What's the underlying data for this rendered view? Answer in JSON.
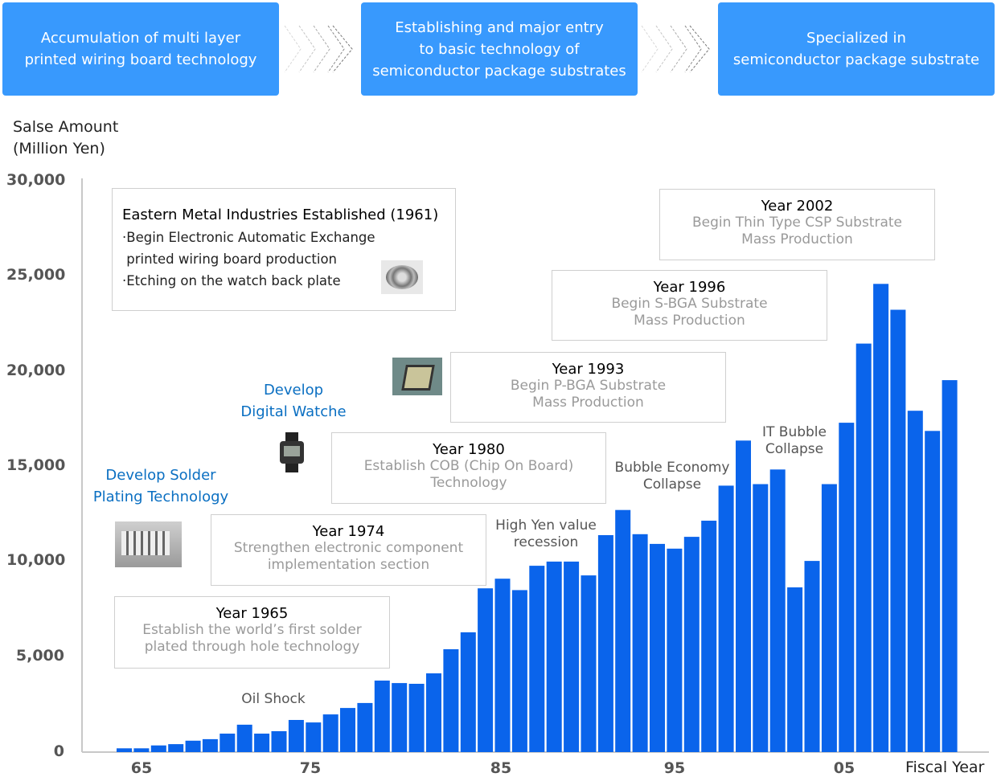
{
  "banners": [
    "Accumulation of multi layer\nprinted  wiring board technology",
    "Establishing and major entry\nto basic technology of\nsemiconductor package substrates",
    "Specialized in\nsemiconductor package substrate"
  ],
  "colors": {
    "banner": "#3899fd",
    "bar": "#0a64eb",
    "milestone_text": "#0a6fc2"
  },
  "milestones": {
    "founding": {
      "title": "Eastern Metal Industries Established (1961)",
      "lines": [
        "·Begin Electronic Automatic Exchange",
        " printed wiring board production",
        "·Etching on the watch back plate"
      ]
    },
    "y2002": {
      "title": "Year 2002",
      "desc": "Begin Thin Type CSP Substrate\nMass Production"
    },
    "y1996": {
      "title": "Year 1996",
      "desc": "Begin S-BGA Substrate\nMass Production"
    },
    "y1993": {
      "title": "Year 1993",
      "desc": "Begin P-BGA Substrate\nMass Production"
    },
    "y1980": {
      "title": "Year 1980",
      "desc": "Establish COB (Chip On Board)\nTechnology"
    },
    "y1974": {
      "title": "Year 1974",
      "desc": "Strengthen electronic component\nimplementation section"
    },
    "y1965": {
      "title": "Year 1965",
      "desc": "Establish the world’s first solder\nplated through hole technology"
    },
    "digital_watch": "Develop\nDigital Watche",
    "solder": "Develop Solder\nPlating Technology"
  },
  "chart_data": {
    "type": "bar",
    "ylabel": "Salse Amount\n(Million Yen)",
    "xlabel": "Fiscal Year",
    "ylim": [
      0,
      30000
    ],
    "yticks": [
      "30,000",
      "25,000",
      "20,000",
      "15,000",
      "10,000",
      "5,000",
      "0"
    ],
    "xticks": [
      "65",
      "75",
      "85",
      "95",
      "05"
    ],
    "grid": false,
    "categories": [
      1964,
      1965,
      1966,
      1967,
      1968,
      1969,
      1970,
      1971,
      1972,
      1973,
      1974,
      1975,
      1976,
      1977,
      1978,
      1979,
      1980,
      1981,
      1982,
      1983,
      1984,
      1985,
      1986,
      1987,
      1988,
      1989,
      1990,
      1991,
      1992,
      1993,
      1994,
      1995,
      1996,
      1997,
      1998,
      1999,
      2000,
      2001,
      2002,
      2003,
      2004,
      2005,
      2006,
      2007,
      2008,
      2009,
      2010,
      2011,
      2012
    ],
    "values": [
      200,
      200,
      350,
      420,
      600,
      680,
      970,
      1440,
      970,
      1100,
      1690,
      1560,
      1980,
      2320,
      2580,
      3760,
      3630,
      3590,
      4140,
      5410,
      6300,
      8610,
      9120,
      8520,
      9800,
      10020,
      10020,
      9290,
      11410,
      12730,
      11460,
      10950,
      10700,
      11320,
      12170,
      14010,
      16380,
      14090,
      14860,
      8660,
      10050,
      14090,
      17320,
      21480,
      24620,
      23260,
      17950,
      16890,
      19560
    ],
    "annotations": [
      "Oil Shock",
      "High Yen value\nrecession",
      "Bubble Economy\nCollapse",
      "IT Bubble\nCollapse"
    ]
  }
}
